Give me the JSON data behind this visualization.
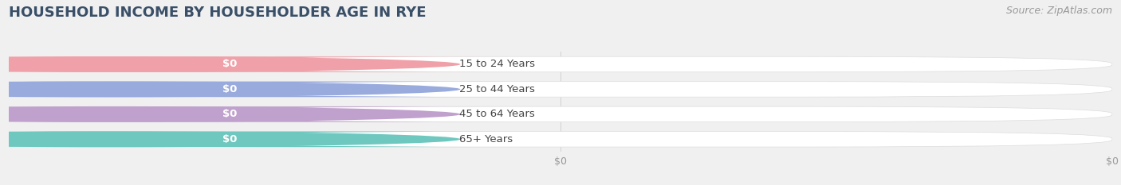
{
  "title": "HOUSEHOLD INCOME BY HOUSEHOLDER AGE IN RYE",
  "source": "Source: ZipAtlas.com",
  "categories": [
    "15 to 24 Years",
    "25 to 44 Years",
    "45 to 64 Years",
    "65+ Years"
  ],
  "values": [
    0,
    0,
    0,
    0
  ],
  "bar_colors": [
    "#f0a0a8",
    "#99aadd",
    "#c0a0cc",
    "#6ec8c0"
  ],
  "background_color": "#f0f0f0",
  "bar_bg_color": "#ffffff",
  "title_color": "#3a5068",
  "label_color": "#444444",
  "tick_color": "#999999",
  "xlim": [
    0,
    1
  ],
  "bar_height": 0.62,
  "title_fontsize": 13,
  "label_fontsize": 9.5,
  "tick_fontsize": 9,
  "source_fontsize": 9,
  "xticks": [
    0.5,
    1.0
  ],
  "xtick_labels": [
    "$0",
    "$0"
  ]
}
